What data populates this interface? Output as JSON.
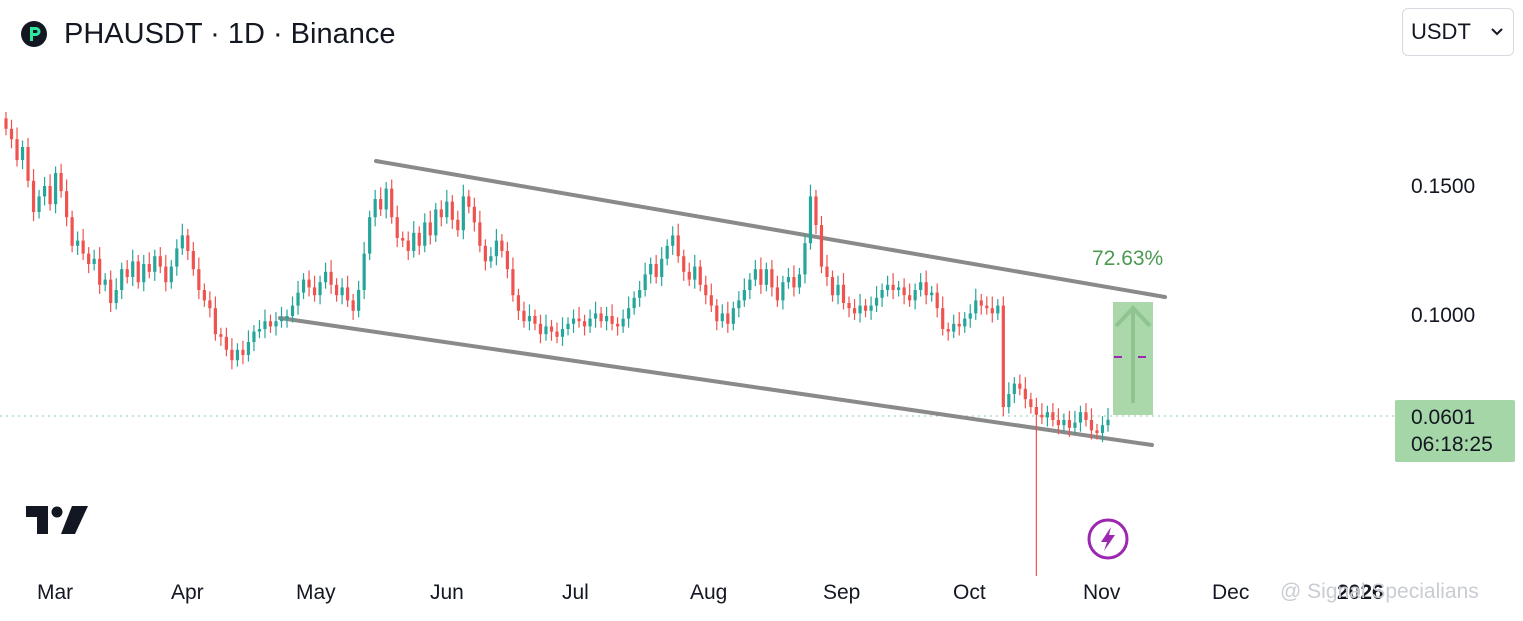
{
  "header": {
    "title": "PHAUSDT · 1D · Binance"
  },
  "currency_select": {
    "value": "USDT"
  },
  "last_price": {
    "price": "0.0601",
    "countdown": "06:18:25"
  },
  "watermark": "@ Signal Specialians",
  "chart_data": {
    "type": "candlestick",
    "title": "PHAUSDT · 1D · Binance",
    "y_ticks": [
      "0.1500",
      "0.1000"
    ],
    "x_ticks": [
      "Mar",
      "Apr",
      "May",
      "Jun",
      "Jul",
      "Aug",
      "Sep",
      "Oct",
      "Nov",
      "Dec",
      "2026"
    ],
    "ylim": [
      0.0,
      0.185
    ],
    "last_price": 0.0601,
    "series_close": [
      0.172,
      0.168,
      0.16,
      0.165,
      0.152,
      0.14,
      0.146,
      0.15,
      0.143,
      0.155,
      0.148,
      0.138,
      0.127,
      0.129,
      0.124,
      0.12,
      0.122,
      0.112,
      0.114,
      0.105,
      0.11,
      0.118,
      0.115,
      0.121,
      0.113,
      0.12,
      0.117,
      0.123,
      0.119,
      0.113,
      0.119,
      0.126,
      0.131,
      0.125,
      0.118,
      0.11,
      0.106,
      0.103,
      0.093,
      0.092,
      0.087,
      0.083,
      0.087,
      0.085,
      0.09,
      0.094,
      0.095,
      0.098,
      0.096,
      0.098,
      0.099,
      0.1,
      0.104,
      0.109,
      0.114,
      0.111,
      0.108,
      0.113,
      0.117,
      0.112,
      0.108,
      0.111,
      0.106,
      0.102,
      0.11,
      0.124,
      0.138,
      0.145,
      0.141,
      0.149,
      0.138,
      0.13,
      0.129,
      0.125,
      0.132,
      0.127,
      0.136,
      0.131,
      0.141,
      0.138,
      0.144,
      0.137,
      0.133,
      0.146,
      0.142,
      0.136,
      0.127,
      0.121,
      0.123,
      0.129,
      0.125,
      0.118,
      0.108,
      0.102,
      0.098,
      0.1,
      0.097,
      0.093,
      0.096,
      0.094,
      0.092,
      0.095,
      0.097,
      0.099,
      0.098,
      0.096,
      0.099,
      0.101,
      0.098,
      0.1,
      0.097,
      0.096,
      0.099,
      0.103,
      0.107,
      0.11,
      0.116,
      0.12,
      0.115,
      0.122,
      0.127,
      0.131,
      0.123,
      0.117,
      0.114,
      0.119,
      0.112,
      0.108,
      0.104,
      0.098,
      0.101,
      0.097,
      0.103,
      0.106,
      0.11,
      0.114,
      0.118,
      0.112,
      0.118,
      0.111,
      0.106,
      0.113,
      0.115,
      0.111,
      0.116,
      0.128,
      0.146,
      0.135,
      0.119,
      0.115,
      0.108,
      0.112,
      0.105,
      0.103,
      0.101,
      0.104,
      0.102,
      0.104,
      0.107,
      0.11,
      0.112,
      0.11,
      0.111,
      0.108,
      0.106,
      0.11,
      0.113,
      0.108,
      0.109,
      0.103,
      0.095,
      0.094,
      0.097,
      0.096,
      0.099,
      0.101,
      0.106,
      0.104,
      0.103,
      0.101,
      0.104,
      0.065,
      0.07,
      0.074,
      0.072,
      0.068,
      0.065,
      0.062,
      0.061,
      0.063,
      0.06,
      0.058,
      0.06,
      0.057,
      0.059,
      0.063,
      0.06,
      0.056,
      0.055,
      0.058,
      0.0601
    ],
    "annotations": [
      {
        "type": "descending-channel"
      },
      {
        "type": "long-position",
        "label": "72.63%"
      }
    ]
  }
}
